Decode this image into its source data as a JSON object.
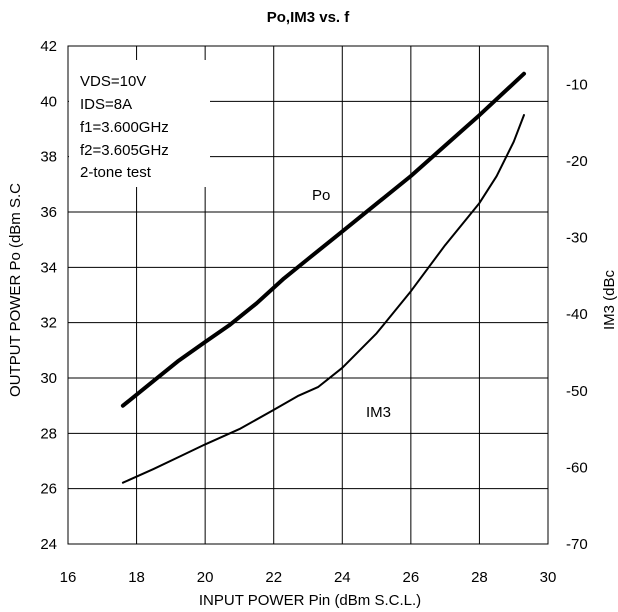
{
  "chart_data": {
    "type": "line",
    "title": "Po,IM3 vs. f",
    "xlabel": "INPUT POWER Pin (dBm S.C.L.)",
    "ylabel_left": "OUTPUT POWER Po (dBm S.C",
    "ylabel_right": "IM3 (dBc",
    "xlim": [
      16,
      30
    ],
    "ylim_left": [
      24,
      42
    ],
    "ylim_right": [
      -70,
      -5
    ],
    "x_ticks": [
      "16",
      "18",
      "20",
      "22",
      "24",
      "26",
      "28",
      "30"
    ],
    "y_left_ticks": [
      "24",
      "26",
      "28",
      "30",
      "32",
      "34",
      "36",
      "38",
      "40",
      "42"
    ],
    "y_right_ticks": [
      "-70",
      "-60",
      "-50",
      "-40",
      "-30",
      "-20",
      "-10"
    ],
    "grid": true,
    "annotation_lines": [
      "VDS=10V",
      "IDS=8A",
      "f1=3.600GHz",
      "f2=3.605GHz",
      "2-tone test"
    ],
    "series": [
      {
        "name": "Po",
        "axis": "left",
        "color": "#000000",
        "points": [
          [
            17.6,
            29.0
          ],
          [
            18.5,
            29.9
          ],
          [
            19.2,
            30.6
          ],
          [
            20.0,
            31.3
          ],
          [
            20.7,
            31.9
          ],
          [
            21.5,
            32.7
          ],
          [
            22.3,
            33.6
          ],
          [
            23.0,
            34.3
          ],
          [
            24.0,
            35.3
          ],
          [
            25.0,
            36.3
          ],
          [
            26.0,
            37.3
          ],
          [
            27.0,
            38.4
          ],
          [
            28.0,
            39.5
          ],
          [
            29.3,
            41.0
          ]
        ]
      },
      {
        "name": "IM3",
        "axis": "right",
        "color": "#000000",
        "points": [
          [
            17.6,
            -62.0
          ],
          [
            18.5,
            -60.2
          ],
          [
            19.3,
            -58.5
          ],
          [
            20.0,
            -57.0
          ],
          [
            21.0,
            -55.0
          ],
          [
            22.0,
            -52.5
          ],
          [
            22.7,
            -50.7
          ],
          [
            23.3,
            -49.5
          ],
          [
            24.0,
            -47.0
          ],
          [
            25.0,
            -42.5
          ],
          [
            26.0,
            -37.0
          ],
          [
            27.0,
            -31.0
          ],
          [
            28.0,
            -25.5
          ],
          [
            28.5,
            -22.0
          ],
          [
            29.0,
            -17.5
          ],
          [
            29.3,
            -14.0
          ]
        ]
      }
    ]
  }
}
